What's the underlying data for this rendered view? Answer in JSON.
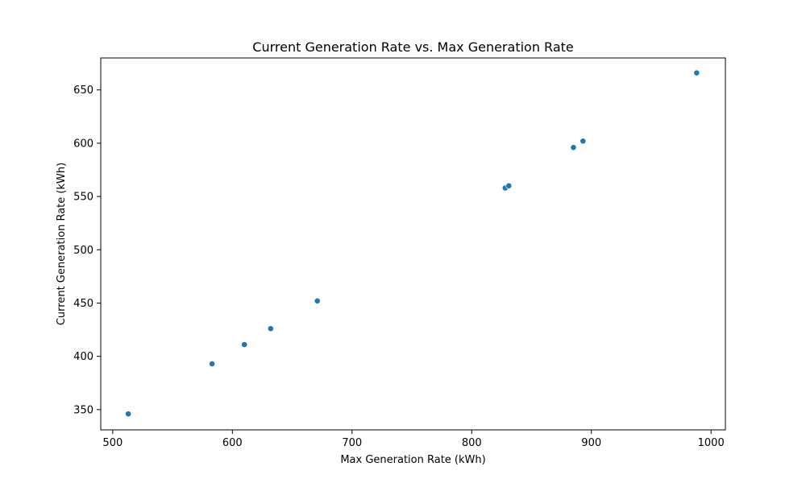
{
  "chart_data": {
    "type": "scatter",
    "title": "Current Generation Rate vs. Max Generation Rate",
    "xlabel": "Max Generation Rate (kWh)",
    "ylabel": "Current Generation Rate (kWh)",
    "xlim": [
      490,
      1012
    ],
    "ylim": [
      331,
      680
    ],
    "x_ticks": [
      500,
      600,
      700,
      800,
      900,
      1000
    ],
    "y_ticks": [
      350,
      400,
      450,
      500,
      550,
      600,
      650
    ],
    "grid": false,
    "legend": "none",
    "marker_color": "#1f77b4",
    "points": [
      {
        "x": 513,
        "y": 346
      },
      {
        "x": 583,
        "y": 393
      },
      {
        "x": 610,
        "y": 411
      },
      {
        "x": 632,
        "y": 426
      },
      {
        "x": 671,
        "y": 452
      },
      {
        "x": 828,
        "y": 558
      },
      {
        "x": 831,
        "y": 560
      },
      {
        "x": 885,
        "y": 596
      },
      {
        "x": 893,
        "y": 602
      },
      {
        "x": 988,
        "y": 666
      }
    ]
  }
}
